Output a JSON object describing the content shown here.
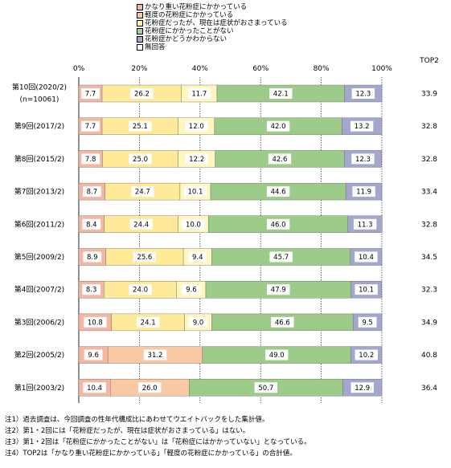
{
  "legend": [
    {
      "label": "かなり重い花粉症にかかっている",
      "color": "#F4B7A4"
    },
    {
      "label": "軽度の花粉症にかかっている",
      "color": "#F8C9A2"
    },
    {
      "label": "花粉症だったが、現在は症状がおさまっている",
      "color": "#FFF3A6"
    },
    {
      "label": "花粉症にかかったことがない",
      "color": "#A8D29A"
    },
    {
      "label": "花粉症かどうかわからない",
      "color": "#A3A7CE"
    },
    {
      "label": "無回答",
      "color": "#FFFFFF"
    }
  ],
  "notes": [
    "注1）過去調査は、今回調査の性年代構成比にあわせてウエイトバックをした集計値。",
    "注2）第1・2回には「花粉症だったが、現在は症状がおさまっている」はない。",
    "注3）第1・2回は「花粉症にかかったことがない」は「花粉症にはかかっていない」となっている。",
    "注4）TOP2は「かなり重い花粉症にかかっている」「軽度の花粉症にかかっている」の合計値。"
  ],
  "chart_data": {
    "type": "bar",
    "orientation": "horizontal",
    "stacked": true,
    "xlim": [
      0,
      100
    ],
    "x_ticks": [
      "0%",
      "20%",
      "40%",
      "60%",
      "80%",
      "100%"
    ],
    "top2_header": "TOP2",
    "categories": [
      [
        "第10回(2020/2)",
        "(n=10061)"
      ],
      [
        "第9回(2017/2)"
      ],
      [
        "第8回(2015/2)"
      ],
      [
        "第7回(2013/2)"
      ],
      [
        "第6回(2011/2)"
      ],
      [
        "第5回(2009/2)"
      ],
      [
        "第4回(2007/2)"
      ],
      [
        "第3回(2006/2)"
      ],
      [
        "第2回(2005/2)"
      ],
      [
        "第1回(2003/2)"
      ]
    ],
    "series": [
      {
        "name": "かなり重い花粉症にかかっている",
        "color": "#F4B7A4",
        "values": [
          7.7,
          7.7,
          7.8,
          8.7,
          8.4,
          8.9,
          8.3,
          10.8,
          9.6,
          10.4
        ]
      },
      {
        "name": "軽度の花粉症にかかっている",
        "color": "#FFEA9A",
        "values": [
          26.2,
          25.1,
          25.0,
          24.7,
          24.4,
          25.6,
          24.0,
          24.1,
          31.2,
          26.0
        ]
      },
      {
        "name": "花粉症だったが、現在は症状がおさまっている",
        "color": "#FFF6C0",
        "values": [
          11.7,
          12.0,
          12.2,
          10.1,
          10.0,
          9.4,
          9.6,
          9.0,
          null,
          null
        ]
      },
      {
        "name": "花粉症にかかったことがない",
        "color": "#9CCB8A",
        "values": [
          42.1,
          42.0,
          42.6,
          44.6,
          46.0,
          45.7,
          47.9,
          46.6,
          49.0,
          50.7
        ]
      },
      {
        "name": "花粉症かどうかわからない",
        "color": "#A3A7CE",
        "values": [
          12.3,
          13.2,
          12.3,
          11.9,
          11.3,
          10.4,
          10.1,
          9.5,
          10.2,
          12.9
        ]
      }
    ],
    "value_labels": [
      [
        "7.7",
        "26.2",
        "11.7",
        "42.1",
        "12.3"
      ],
      [
        "7.7",
        "25.1",
        "12.0",
        "42.0",
        "13.2"
      ],
      [
        "7.8",
        "25.0",
        "12.2",
        "42.6",
        "12.3"
      ],
      [
        "8.7",
        "24.7",
        "10.1",
        "44.6",
        "11.9"
      ],
      [
        "8.4",
        "24.4",
        "10.0",
        "46.0",
        "11.3"
      ],
      [
        "8.9",
        "25.6",
        "9.4",
        "45.7",
        "10.4"
      ],
      [
        "8.3",
        "24.0",
        "9.6",
        "47.9",
        "10.1"
      ],
      [
        "10.8",
        "24.1",
        "9.0",
        "46.6",
        "9.5"
      ],
      [
        "9.6",
        "31.2",
        "",
        "49.0",
        "10.2"
      ],
      [
        "10.4",
        "26.0",
        "",
        "50.7",
        "12.9"
      ]
    ],
    "top2": [
      "33.9",
      "32.8",
      "32.8",
      "33.4",
      "32.8",
      "34.5",
      "32.3",
      "34.9",
      "40.8",
      "36.4"
    ],
    "early_light_color": "#F8C9A2",
    "grid": true
  }
}
